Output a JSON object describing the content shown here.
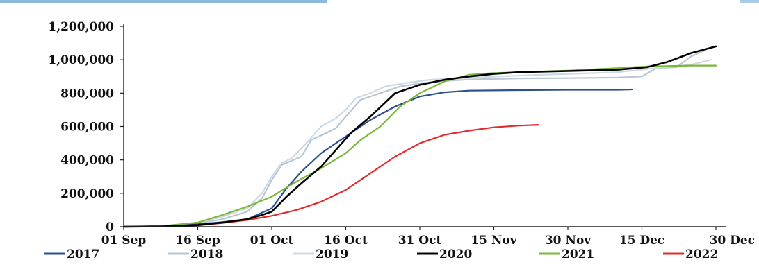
{
  "chart_data": {
    "type": "line",
    "title": "",
    "xlabel": "",
    "ylabel": "",
    "x_ticks": [
      "01 Sep",
      "16 Sep",
      "01 Oct",
      "16 Oct",
      "31 Oct",
      "15 Nov",
      "30 Nov",
      "15 Dec",
      "30 Dec"
    ],
    "x_tick_days": [
      0,
      15,
      30,
      45,
      60,
      75,
      90,
      105,
      120
    ],
    "y_ticks": [
      "0",
      "200,000",
      "400,000",
      "600,000",
      "800,000",
      "1,000,000",
      "1,200,000"
    ],
    "ylim": [
      0,
      1200000
    ],
    "legend_position": "bottom",
    "grid": false,
    "series": [
      {
        "name": "2017",
        "color": "#2c4f8f",
        "points": [
          [
            0,
            0
          ],
          [
            8,
            3000
          ],
          [
            15,
            15000
          ],
          [
            20,
            28000
          ],
          [
            25,
            45000
          ],
          [
            30,
            110000
          ],
          [
            33,
            230000
          ],
          [
            36,
            330000
          ],
          [
            40,
            440000
          ],
          [
            45,
            540000
          ],
          [
            50,
            640000
          ],
          [
            55,
            720000
          ],
          [
            60,
            780000
          ],
          [
            65,
            805000
          ],
          [
            70,
            815000
          ],
          [
            80,
            818000
          ],
          [
            90,
            820000
          ],
          [
            100,
            820000
          ],
          [
            103,
            822000
          ]
        ]
      },
      {
        "name": "2018",
        "color": "#b9c6d3",
        "points": [
          [
            0,
            0
          ],
          [
            8,
            3000
          ],
          [
            15,
            20000
          ],
          [
            20,
            45000
          ],
          [
            25,
            90000
          ],
          [
            28,
            170000
          ],
          [
            30,
            280000
          ],
          [
            32,
            370000
          ],
          [
            34,
            395000
          ],
          [
            36,
            420000
          ],
          [
            38,
            520000
          ],
          [
            41,
            560000
          ],
          [
            43,
            590000
          ],
          [
            45,
            660000
          ],
          [
            48,
            760000
          ],
          [
            52,
            800000
          ],
          [
            56,
            840000
          ],
          [
            60,
            858000
          ],
          [
            65,
            873000
          ],
          [
            70,
            882000
          ],
          [
            80,
            888000
          ],
          [
            90,
            890000
          ],
          [
            100,
            893000
          ],
          [
            105,
            900000
          ],
          [
            108,
            950000
          ],
          [
            112,
            955000
          ],
          [
            115,
            1020000
          ],
          [
            118,
            1060000
          ]
        ]
      },
      {
        "name": "2019",
        "color": "#cfd9e6",
        "points": [
          [
            0,
            0
          ],
          [
            8,
            4000
          ],
          [
            15,
            25000
          ],
          [
            20,
            60000
          ],
          [
            25,
            110000
          ],
          [
            28,
            200000
          ],
          [
            30,
            300000
          ],
          [
            32,
            380000
          ],
          [
            34,
            410000
          ],
          [
            37,
            500000
          ],
          [
            40,
            600000
          ],
          [
            43,
            650000
          ],
          [
            45,
            700000
          ],
          [
            47,
            770000
          ],
          [
            50,
            800000
          ],
          [
            53,
            840000
          ],
          [
            57,
            860000
          ],
          [
            62,
            880000
          ],
          [
            68,
            890000
          ],
          [
            80,
            905000
          ],
          [
            90,
            915000
          ],
          [
            100,
            925000
          ],
          [
            108,
            950000
          ],
          [
            115,
            970000
          ],
          [
            119,
            1000000
          ]
        ]
      },
      {
        "name": "2020",
        "color": "#000000",
        "points": [
          [
            0,
            0
          ],
          [
            8,
            2000
          ],
          [
            15,
            10000
          ],
          [
            20,
            25000
          ],
          [
            25,
            45000
          ],
          [
            28,
            70000
          ],
          [
            30,
            90000
          ],
          [
            33,
            180000
          ],
          [
            36,
            260000
          ],
          [
            40,
            360000
          ],
          [
            43,
            460000
          ],
          [
            46,
            560000
          ],
          [
            50,
            660000
          ],
          [
            55,
            800000
          ],
          [
            60,
            850000
          ],
          [
            65,
            880000
          ],
          [
            70,
            900000
          ],
          [
            75,
            915000
          ],
          [
            80,
            925000
          ],
          [
            90,
            932000
          ],
          [
            100,
            940000
          ],
          [
            106,
            955000
          ],
          [
            110,
            985000
          ],
          [
            115,
            1040000
          ],
          [
            120,
            1080000
          ]
        ]
      },
      {
        "name": "2021",
        "color": "#7bb83a",
        "points": [
          [
            0,
            0
          ],
          [
            8,
            5000
          ],
          [
            15,
            25000
          ],
          [
            20,
            70000
          ],
          [
            25,
            120000
          ],
          [
            30,
            180000
          ],
          [
            35,
            270000
          ],
          [
            40,
            350000
          ],
          [
            45,
            440000
          ],
          [
            48,
            520000
          ],
          [
            52,
            600000
          ],
          [
            56,
            720000
          ],
          [
            60,
            800000
          ],
          [
            65,
            870000
          ],
          [
            70,
            910000
          ],
          [
            75,
            920000
          ],
          [
            80,
            925000
          ],
          [
            90,
            935000
          ],
          [
            100,
            950000
          ],
          [
            106,
            960000
          ],
          [
            110,
            962000
          ],
          [
            115,
            965000
          ],
          [
            120,
            965000
          ]
        ]
      },
      {
        "name": "2022",
        "color": "#e32b2b",
        "points": [
          [
            0,
            0
          ],
          [
            8,
            1000
          ],
          [
            15,
            8000
          ],
          [
            20,
            22000
          ],
          [
            25,
            40000
          ],
          [
            30,
            65000
          ],
          [
            35,
            100000
          ],
          [
            40,
            150000
          ],
          [
            45,
            220000
          ],
          [
            50,
            320000
          ],
          [
            55,
            420000
          ],
          [
            60,
            500000
          ],
          [
            65,
            550000
          ],
          [
            70,
            575000
          ],
          [
            75,
            595000
          ],
          [
            80,
            605000
          ],
          [
            84,
            610000
          ]
        ]
      }
    ]
  }
}
